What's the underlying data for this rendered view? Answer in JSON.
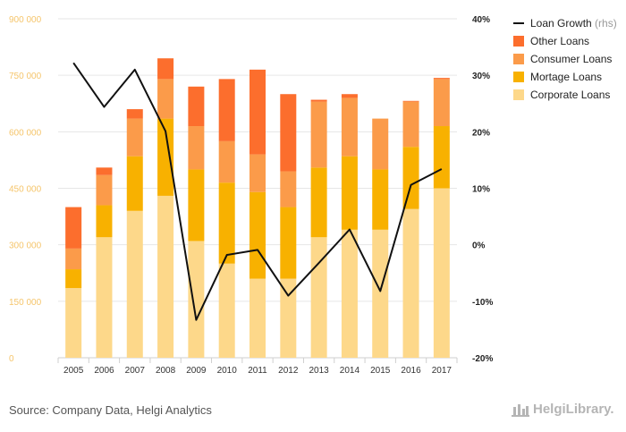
{
  "chart_data": {
    "type": "bar",
    "stacked": true,
    "categories": [
      "2005",
      "2006",
      "2007",
      "2008",
      "2009",
      "2010",
      "2011",
      "2012",
      "2013",
      "2014",
      "2015",
      "2016",
      "2017"
    ],
    "series": [
      {
        "name": "Corporate Loans",
        "color": "#fdd88a",
        "values": [
          185000,
          320000,
          390000,
          430000,
          310000,
          250000,
          210000,
          210000,
          320000,
          340000,
          340000,
          395000,
          450000
        ]
      },
      {
        "name": "Mortage Loans",
        "color": "#f8b100",
        "values": [
          50000,
          85000,
          145000,
          205000,
          190000,
          215000,
          230000,
          190000,
          185000,
          195000,
          160000,
          165000,
          165000
        ]
      },
      {
        "name": "Consumer Loans",
        "color": "#fb9b4a",
        "values": [
          55000,
          80000,
          100000,
          105000,
          115000,
          110000,
          100000,
          95000,
          175000,
          155000,
          135000,
          120000,
          125000
        ]
      },
      {
        "name": "Other Loans",
        "color": "#fc6e2d",
        "values": [
          110000,
          20000,
          25000,
          55000,
          105000,
          165000,
          225000,
          205000,
          5000,
          10000,
          0,
          2000,
          3000
        ]
      }
    ],
    "line_series": {
      "name": "Loan Growth",
      "axis_note": "(rhs)",
      "color": "#111111",
      "values": [
        32.2,
        24.4,
        31.0,
        20.1,
        -13.3,
        -1.8,
        -0.9,
        -9.0,
        -3.2,
        2.7,
        -8.2,
        10.6,
        13.4
      ]
    },
    "y_left": {
      "min": 0,
      "max": 900000,
      "ticks": [
        "0",
        "150 000",
        "300 000",
        "450 000",
        "600 000",
        "750 000",
        "900 000"
      ]
    },
    "y_right": {
      "min": -20,
      "max": 40,
      "ticks": [
        "-20%",
        "-10%",
        "0%",
        "10%",
        "20%",
        "30%",
        "40%"
      ]
    },
    "grid": true,
    "legend_position": "top-right"
  },
  "footer": {
    "source": "Source: Company Data, Helgi Analytics",
    "logo": "HelgiLibrary."
  }
}
